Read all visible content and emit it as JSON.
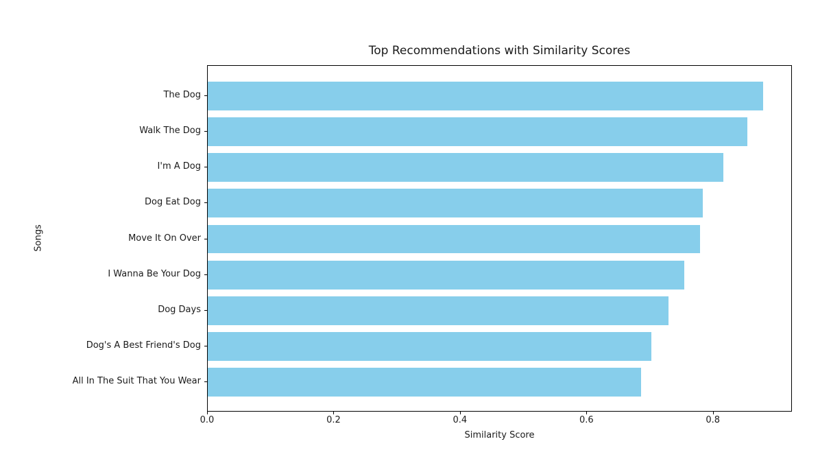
{
  "chart_data": {
    "type": "bar",
    "orientation": "horizontal",
    "title": "Top Recommendations with Similarity Scores",
    "xlabel": "Similarity Score",
    "ylabel": "Songs",
    "categories": [
      "The Dog",
      "Walk The Dog",
      "I'm A Dog",
      "Dog Eat Dog",
      "Move It On Over",
      "I Wanna Be Your Dog",
      "Dog Days",
      "Dog's A Best Friend's Dog",
      "All In The Suit That You Wear"
    ],
    "values": [
      0.88,
      0.855,
      0.817,
      0.785,
      0.78,
      0.755,
      0.73,
      0.703,
      0.687
    ],
    "xlim": [
      0.0,
      0.925
    ],
    "x_ticks": [
      0.0,
      0.2,
      0.4,
      0.6,
      0.8
    ],
    "x_tick_labels": [
      "0.0",
      "0.2",
      "0.4",
      "0.6",
      "0.8"
    ],
    "bar_color": "#87CEEB",
    "background_color": "#ffffff",
    "text_color": "#1a1a1a",
    "spine_color": "#000000",
    "grid": false,
    "legend": null
  }
}
